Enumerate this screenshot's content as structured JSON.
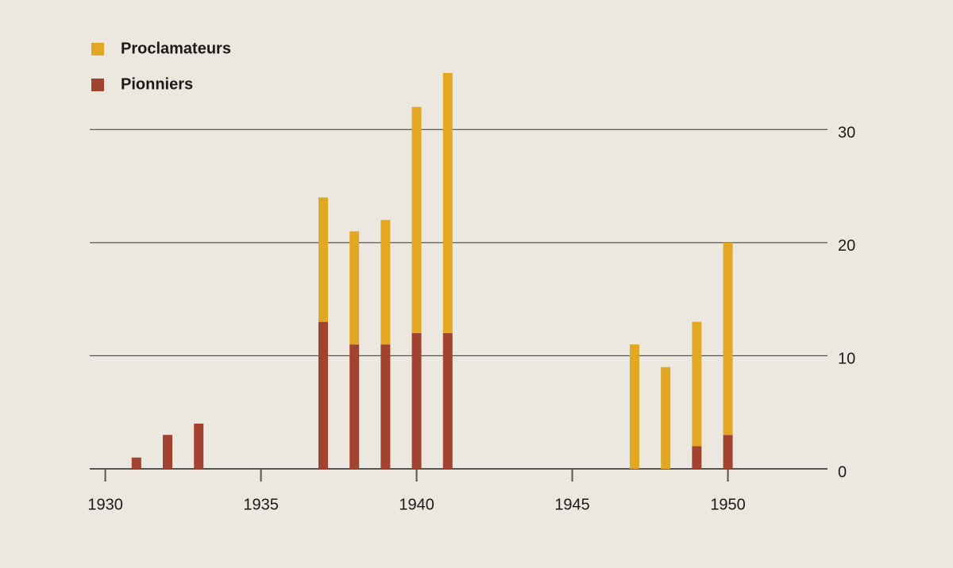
{
  "chart_data": {
    "type": "stacked_bar",
    "x": [
      1931,
      1932,
      1933,
      1937,
      1938,
      1939,
      1940,
      1941,
      1947,
      1948,
      1949,
      1950
    ],
    "series": [
      {
        "name": "Pionniers",
        "color": "#a2432f",
        "values": [
          1,
          3,
          4,
          13,
          11,
          11,
          12,
          12,
          0,
          0,
          2,
          3
        ]
      },
      {
        "name": "Proclamateurs",
        "color": "#e3a823",
        "values": [
          0,
          0,
          0,
          11,
          10,
          11,
          20,
          23,
          11,
          9,
          11,
          17
        ]
      }
    ],
    "xlim": [
      1929.5,
      1953.2
    ],
    "xticks": [
      1930,
      1935,
      1940,
      1945,
      1950
    ],
    "ylim": [
      0,
      34.3
    ],
    "yticks": [
      0,
      10,
      20,
      30
    ],
    "grid": true,
    "legend": "top-left"
  }
}
